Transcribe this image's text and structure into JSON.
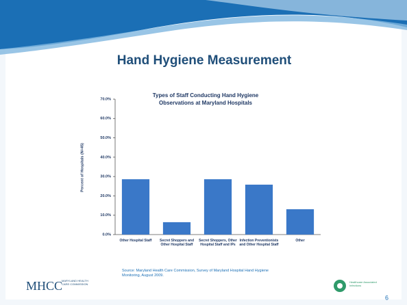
{
  "slide": {
    "title": "Hand  Hygiene Measurement",
    "source": "Source: Maryland Health Care Commission, Survey of Maryland Hospital Hand Hygiene Monitoring, August 2009.",
    "page_number": "6",
    "logo_left": {
      "mark": "MHCC",
      "text": "MARYLAND HEALTH CARE COMMISSION"
    },
    "logo_right": {
      "text": "Healthcare Associated Infections"
    }
  },
  "chart_data": {
    "type": "bar",
    "title": "Types of Staff Conducting Hand Hygiene Observations at Maryland Hospitals",
    "y_label": "Percent of Hospitals (N=45)",
    "categories": [
      "Other Hospital Staff",
      "Secret Shoppers and Other Hospital Staff",
      "Secret Shoppers, Other Hospital Staff and IPs",
      "Infection Preventionists and Other Hospital Staff",
      "Other"
    ],
    "values": [
      28.6,
      6.4,
      28.6,
      25.8,
      13.1
    ],
    "color": "#3a78c8",
    "ylim": [
      0,
      70
    ],
    "yticks": [
      {
        "value": 0,
        "label": "0.0%"
      },
      {
        "value": 10,
        "label": "10.0%"
      },
      {
        "value": 20,
        "label": "20.0%"
      },
      {
        "value": 30,
        "label": "30.0%"
      },
      {
        "value": 40,
        "label": "40.0%"
      },
      {
        "value": 50,
        "label": "50.0%"
      },
      {
        "value": 60,
        "label": "60.0%"
      },
      {
        "value": 70,
        "label": "70.0%"
      }
    ],
    "grid": false
  }
}
